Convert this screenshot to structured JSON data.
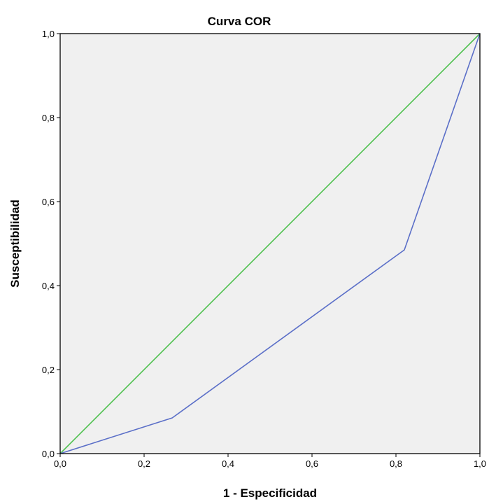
{
  "chart_data": {
    "type": "line",
    "title": "Curva COR",
    "xlabel": "1 - Especificidad",
    "ylabel": "Susceptibilidad",
    "xlim": [
      0,
      1
    ],
    "ylim": [
      0,
      1
    ],
    "x_ticks": [
      "0,0",
      "0,2",
      "0,4",
      "0,6",
      "0,8",
      "1,0"
    ],
    "y_ticks": [
      "0,0",
      "0,2",
      "0,4",
      "0,6",
      "0,8",
      "1,0"
    ],
    "grid": false,
    "plot_background": "#f0f0f0",
    "series": [
      {
        "color": "#5b6fc8",
        "points": [
          {
            "x": 0.0,
            "y": 0.0
          },
          {
            "x": 0.267,
            "y": 0.085
          },
          {
            "x": 0.82,
            "y": 0.485
          },
          {
            "x": 1.0,
            "y": 1.0
          }
        ]
      },
      {
        "color": "#4fc14f",
        "points": [
          {
            "x": 0.0,
            "y": 0.0
          },
          {
            "x": 1.0,
            "y": 1.0
          }
        ]
      }
    ]
  }
}
